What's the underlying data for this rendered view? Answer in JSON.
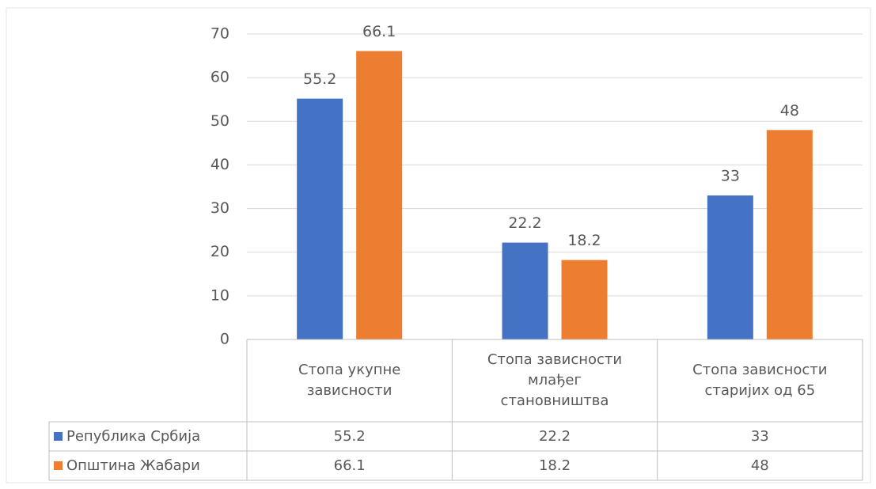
{
  "chart_data": {
    "type": "bar",
    "categories": [
      "Стопа укупне зависности",
      "Стопа зависности млађег становништва",
      "Стопа зависности старијих од 65"
    ],
    "series": [
      {
        "name": "Република Србија",
        "color": "#4472c4",
        "values": [
          55.2,
          22.2,
          33
        ]
      },
      {
        "name": "Општина Жабари",
        "color": "#ed7d31",
        "values": [
          66.1,
          18.2,
          48
        ]
      }
    ],
    "ylim": [
      0,
      70
    ],
    "yticks": [
      0,
      10,
      20,
      30,
      40,
      50,
      60,
      70
    ],
    "grid": true,
    "data_table": true
  }
}
